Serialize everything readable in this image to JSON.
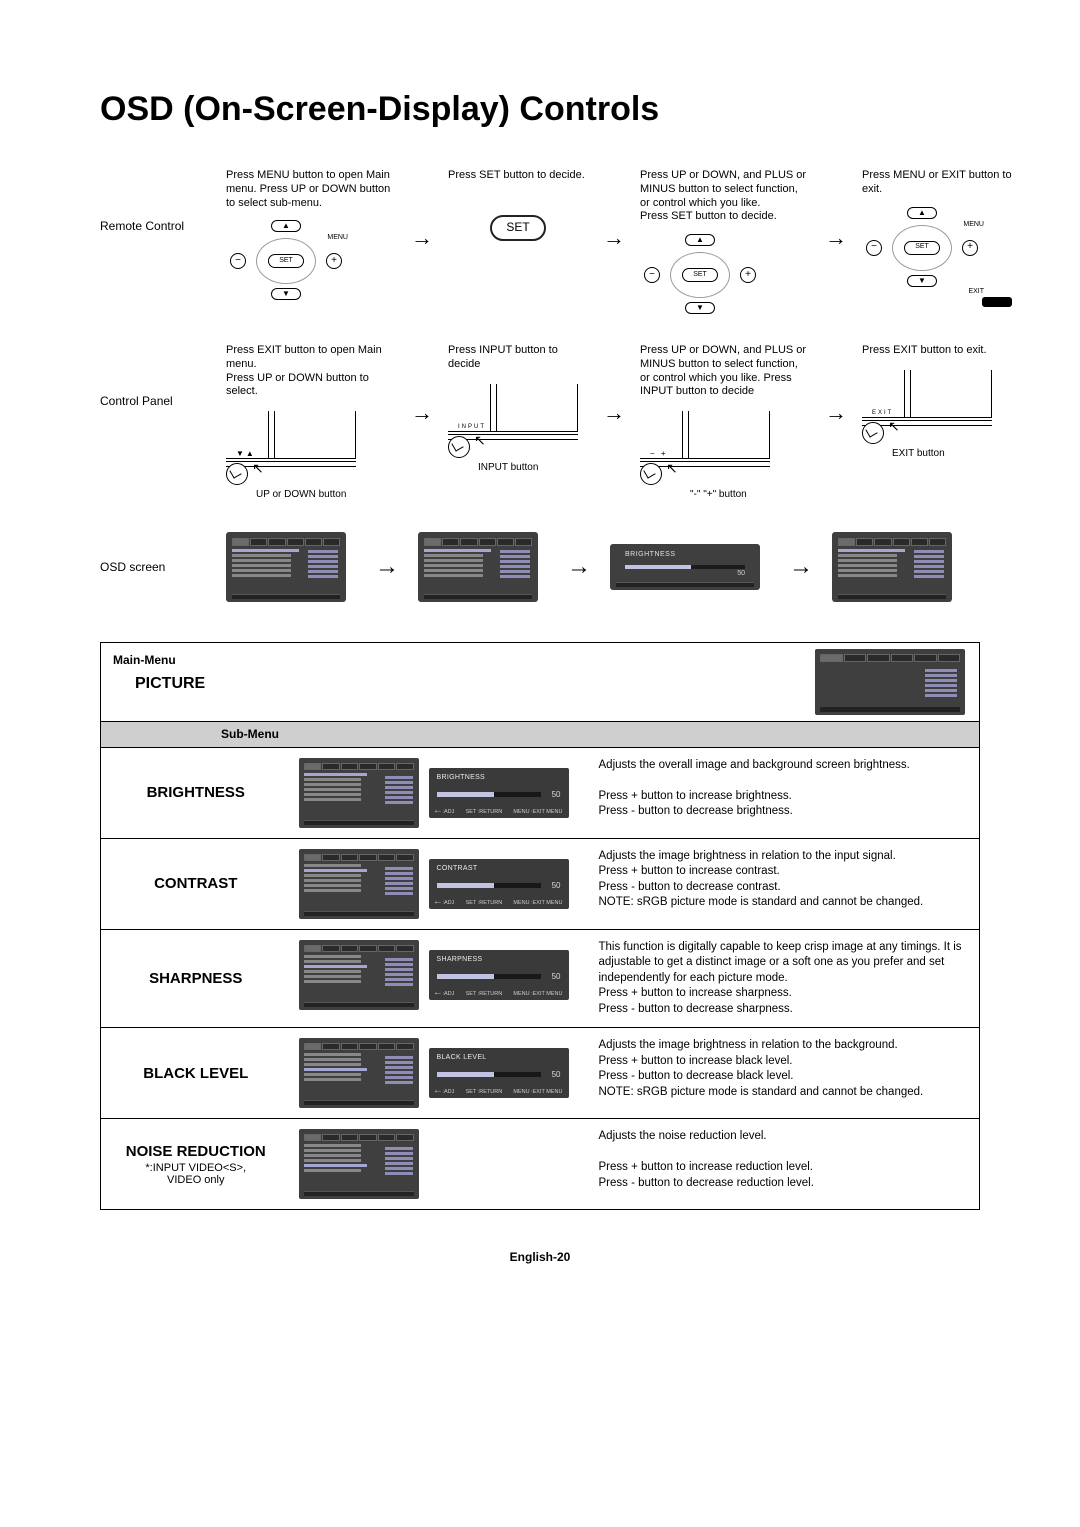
{
  "title": "OSD (On-Screen-Display) Controls",
  "footer": "English-20",
  "remote": {
    "row_label": "Remote Control",
    "step1": "Press MENU button to open Main menu.  Press UP or DOWN button to select sub-menu.",
    "step2": "Press SET button to decide.",
    "step3": "Press UP or DOWN, and PLUS or MINUS button to select  function, or control which you like.\nPress SET button to decide.",
    "step4": "Press MENU or EXIT button to exit.",
    "set_label": "SET",
    "menu_lbl": "MENU",
    "exit_lbl": "EXIT",
    "minus": "−",
    "plus": "+",
    "up": "▲",
    "down": "▼"
  },
  "panel": {
    "row_label": "Control Panel",
    "step1": "Press EXIT button to open Main menu.\nPress UP or DOWN button to select.",
    "step2": "Press INPUT button to decide",
    "step3": "Press UP or DOWN, and PLUS or MINUS button to select function, or control which you like.  Press INPUT button to decide",
    "step4": "Press EXIT button to exit.",
    "cap1": "UP or DOWN button",
    "cap2": "INPUT button",
    "cap3": "\"-\"  \"+\" button",
    "cap4": "EXIT button",
    "sym1": "▼▲",
    "sym2": "INPUT",
    "sym3": "−  +",
    "sym4": "EXIT"
  },
  "osd": {
    "row_label": "OSD screen",
    "slider_title": "BRIGHTNESS",
    "slider_val": "50"
  },
  "table": {
    "main_menu": "Main-Menu",
    "picture": "PICTURE",
    "sub_menu": "Sub-Menu",
    "rows": [
      {
        "name": "BRIGHTNESS",
        "sub": "",
        "adj_title": "BRIGHTNESS",
        "adj_val": "50",
        "desc": "Adjusts the overall image and background screen brightness.\n\nPress + button to increase brightness.\nPress - button to decrease brightness."
      },
      {
        "name": "CONTRAST",
        "sub": "",
        "adj_title": "CONTRAST",
        "adj_val": "50",
        "desc": "Adjusts the image brightness in relation to the input signal.\nPress + button to increase contrast.\nPress - button to decrease contrast.\nNOTE:  sRGB picture mode is standard and cannot be changed."
      },
      {
        "name": "SHARPNESS",
        "sub": "",
        "adj_title": "SHARPNESS",
        "adj_val": "50",
        "desc": "This function is digitally capable to keep crisp image at any timings.  It is adjustable to get a distinct image or a soft one as you prefer and set independently for each picture mode.\nPress + button to increase sharpness.\nPress - button to decrease sharpness."
      },
      {
        "name": "BLACK LEVEL",
        "sub": "",
        "adj_title": "BLACK  LEVEL",
        "adj_val": "50",
        "desc": "Adjusts the image brightness in relation to the background.\nPress + button to increase black level.\nPress - button to decrease black level.\nNOTE: sRGB picture mode is standard and cannot be changed."
      },
      {
        "name": "NOISE REDUCTION",
        "sub": "*:INPUT VIDEO<S>,\nVIDEO only",
        "adj_title": "",
        "adj_val": "",
        "desc": "Adjusts the noise reduction level.\n\nPress + button to increase reduction level.\nPress - button to decrease reduction level."
      }
    ],
    "adj_footer_left": "+− :ADJ",
    "adj_footer_mid": "SET :RETURN",
    "adj_footer_right": "MENU :EXIT MENU"
  },
  "style": {
    "page_bg": "#ffffff",
    "thumb_bg": "#3f3f3f",
    "accent_bar": "#8d8db5",
    "hl_line": "#a6a6d4",
    "submenu_bg": "#cfcfcf",
    "title_fontsize": 34,
    "body_fontsize": 12,
    "desc_fontsize": 11.5
  }
}
